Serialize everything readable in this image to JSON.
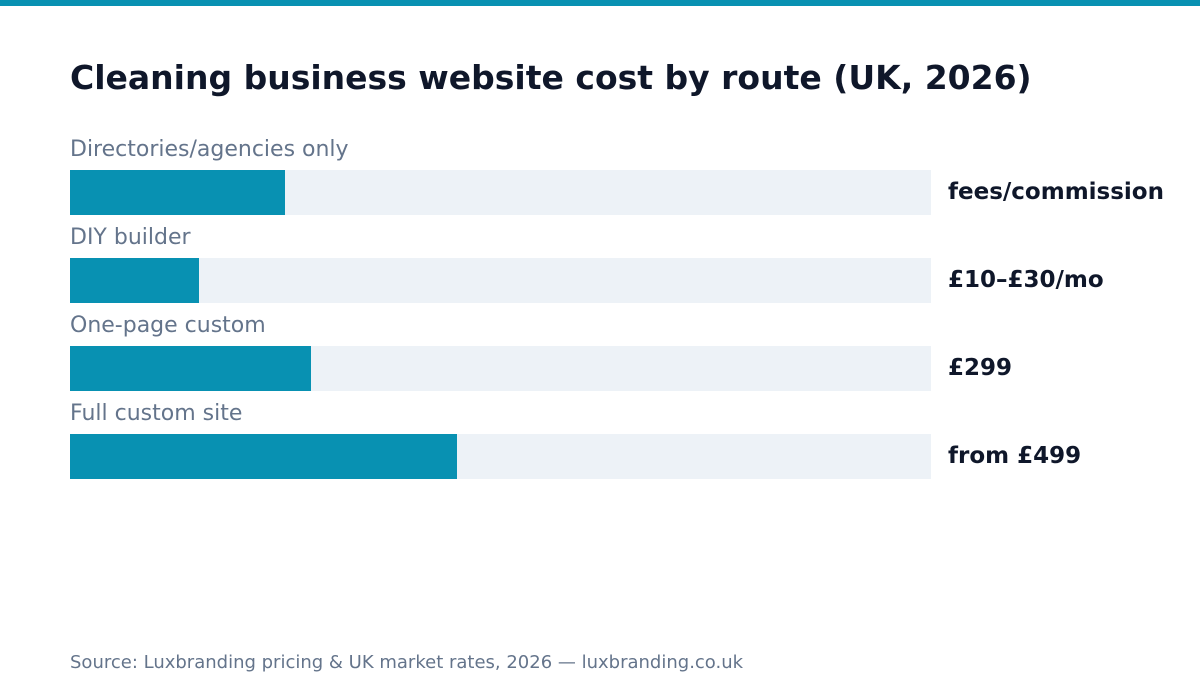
{
  "header": {
    "title": "Cleaning business website cost by route (UK, 2026)"
  },
  "chart_data": {
    "type": "bar",
    "orientation": "horizontal",
    "title": "Cleaning business website cost by route (UK, 2026)",
    "categories": [
      "Directories/agencies only",
      "DIY builder",
      "One-page custom",
      "Full custom site"
    ],
    "values": [
      0.25,
      0.15,
      0.28,
      0.45
    ],
    "value_labels": [
      "fees/commission",
      "£10–£30/mo",
      "£299",
      "from £499"
    ],
    "xlim": [
      0,
      1
    ],
    "grid": false,
    "legend": "none",
    "colors": {
      "bar": "#0891b2",
      "track": "#edf2f7",
      "accent": "#0891b2"
    }
  },
  "footer": {
    "source": "Source: Luxbranding pricing & UK market rates, 2026 — luxbranding.co.uk"
  }
}
